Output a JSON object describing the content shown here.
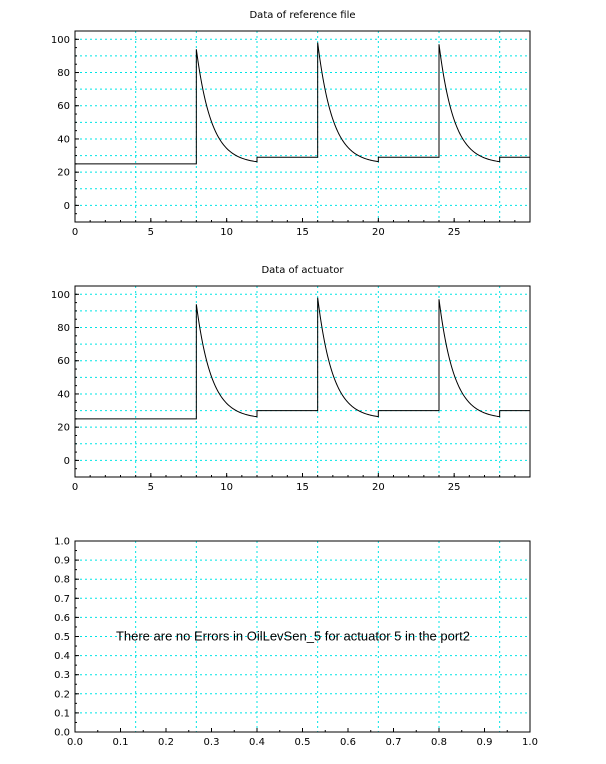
{
  "chart_data": [
    {
      "type": "line",
      "title": "Data of reference file",
      "xlim": [
        0,
        30
      ],
      "ylim": [
        -10,
        105
      ],
      "xticks": [
        0,
        5,
        10,
        15,
        20,
        25
      ],
      "yticks": [
        0,
        20,
        40,
        60,
        80,
        100
      ],
      "xgrid": [
        0,
        4,
        8,
        12,
        16,
        20,
        24,
        28
      ],
      "ygrid": [
        -10,
        0,
        10,
        20,
        30,
        40,
        50,
        60,
        70,
        80,
        90,
        100
      ],
      "grid": true,
      "grid_color": "#00e5e5",
      "line_color": "#000000",
      "series": [
        {
          "segments": [
            {
              "kind": "const",
              "x0": 0,
              "x1": 8,
              "y": 25
            },
            {
              "kind": "decay",
              "x0": 8,
              "x1": 12,
              "peak": 94,
              "base": 25,
              "tau": 1.0
            },
            {
              "kind": "const",
              "x0": 12,
              "x1": 16,
              "y": 29
            },
            {
              "kind": "decay",
              "x0": 16,
              "x1": 20,
              "peak": 98,
              "base": 25,
              "tau": 1.0
            },
            {
              "kind": "const",
              "x0": 20,
              "x1": 24,
              "y": 29
            },
            {
              "kind": "decay",
              "x0": 24,
              "x1": 28,
              "peak": 97,
              "base": 25,
              "tau": 1.0
            },
            {
              "kind": "const",
              "x0": 28,
              "x1": 30,
              "y": 29
            }
          ]
        }
      ]
    },
    {
      "type": "line",
      "title": "Data of actuator",
      "xlim": [
        0,
        30
      ],
      "ylim": [
        -10,
        105
      ],
      "xticks": [
        0,
        5,
        10,
        15,
        20,
        25
      ],
      "yticks": [
        0,
        20,
        40,
        60,
        80,
        100
      ],
      "xgrid": [
        0,
        4,
        8,
        12,
        16,
        20,
        24,
        28
      ],
      "ygrid": [
        -10,
        0,
        10,
        20,
        30,
        40,
        50,
        60,
        70,
        80,
        90,
        100
      ],
      "grid": true,
      "grid_color": "#00e5e5",
      "line_color": "#000000",
      "series": [
        {
          "segments": [
            {
              "kind": "const",
              "x0": 0,
              "x1": 8,
              "y": 25
            },
            {
              "kind": "decay",
              "x0": 8,
              "x1": 12,
              "peak": 94,
              "base": 25,
              "tau": 1.0
            },
            {
              "kind": "const",
              "x0": 12,
              "x1": 16,
              "y": 30
            },
            {
              "kind": "decay",
              "x0": 16,
              "x1": 20,
              "peak": 98,
              "base": 25,
              "tau": 1.0
            },
            {
              "kind": "const",
              "x0": 20,
              "x1": 24,
              "y": 30
            },
            {
              "kind": "decay",
              "x0": 24,
              "x1": 28,
              "peak": 97,
              "base": 25,
              "tau": 1.0
            },
            {
              "kind": "const",
              "x0": 28,
              "x1": 30,
              "y": 30
            }
          ]
        }
      ]
    },
    {
      "type": "text",
      "title": "",
      "xlim": [
        0,
        1
      ],
      "ylim": [
        0,
        1
      ],
      "xticks": [
        "0.0",
        "0.1",
        "0.2",
        "0.3",
        "0.4",
        "0.5",
        "0.6",
        "0.7",
        "0.8",
        "0.9",
        "1.0"
      ],
      "yticks": [
        "0.0",
        "0.1",
        "0.2",
        "0.3",
        "0.4",
        "0.5",
        "0.6",
        "0.7",
        "0.8",
        "0.9",
        "1.0"
      ],
      "xgrid": [
        0,
        0.1333,
        0.2667,
        0.4,
        0.5333,
        0.6667,
        0.8,
        0.9333
      ],
      "ygrid": [
        0,
        0.1,
        0.2,
        0.3,
        0.4,
        0.5,
        0.6,
        0.7,
        0.8,
        0.9,
        1.0
      ],
      "grid": true,
      "grid_color": "#00e5e5",
      "annotation": "There are no Errors in OilLevSen_5 for actuator 5 in the port2",
      "annotation_position": [
        0.09,
        0.5
      ]
    }
  ]
}
